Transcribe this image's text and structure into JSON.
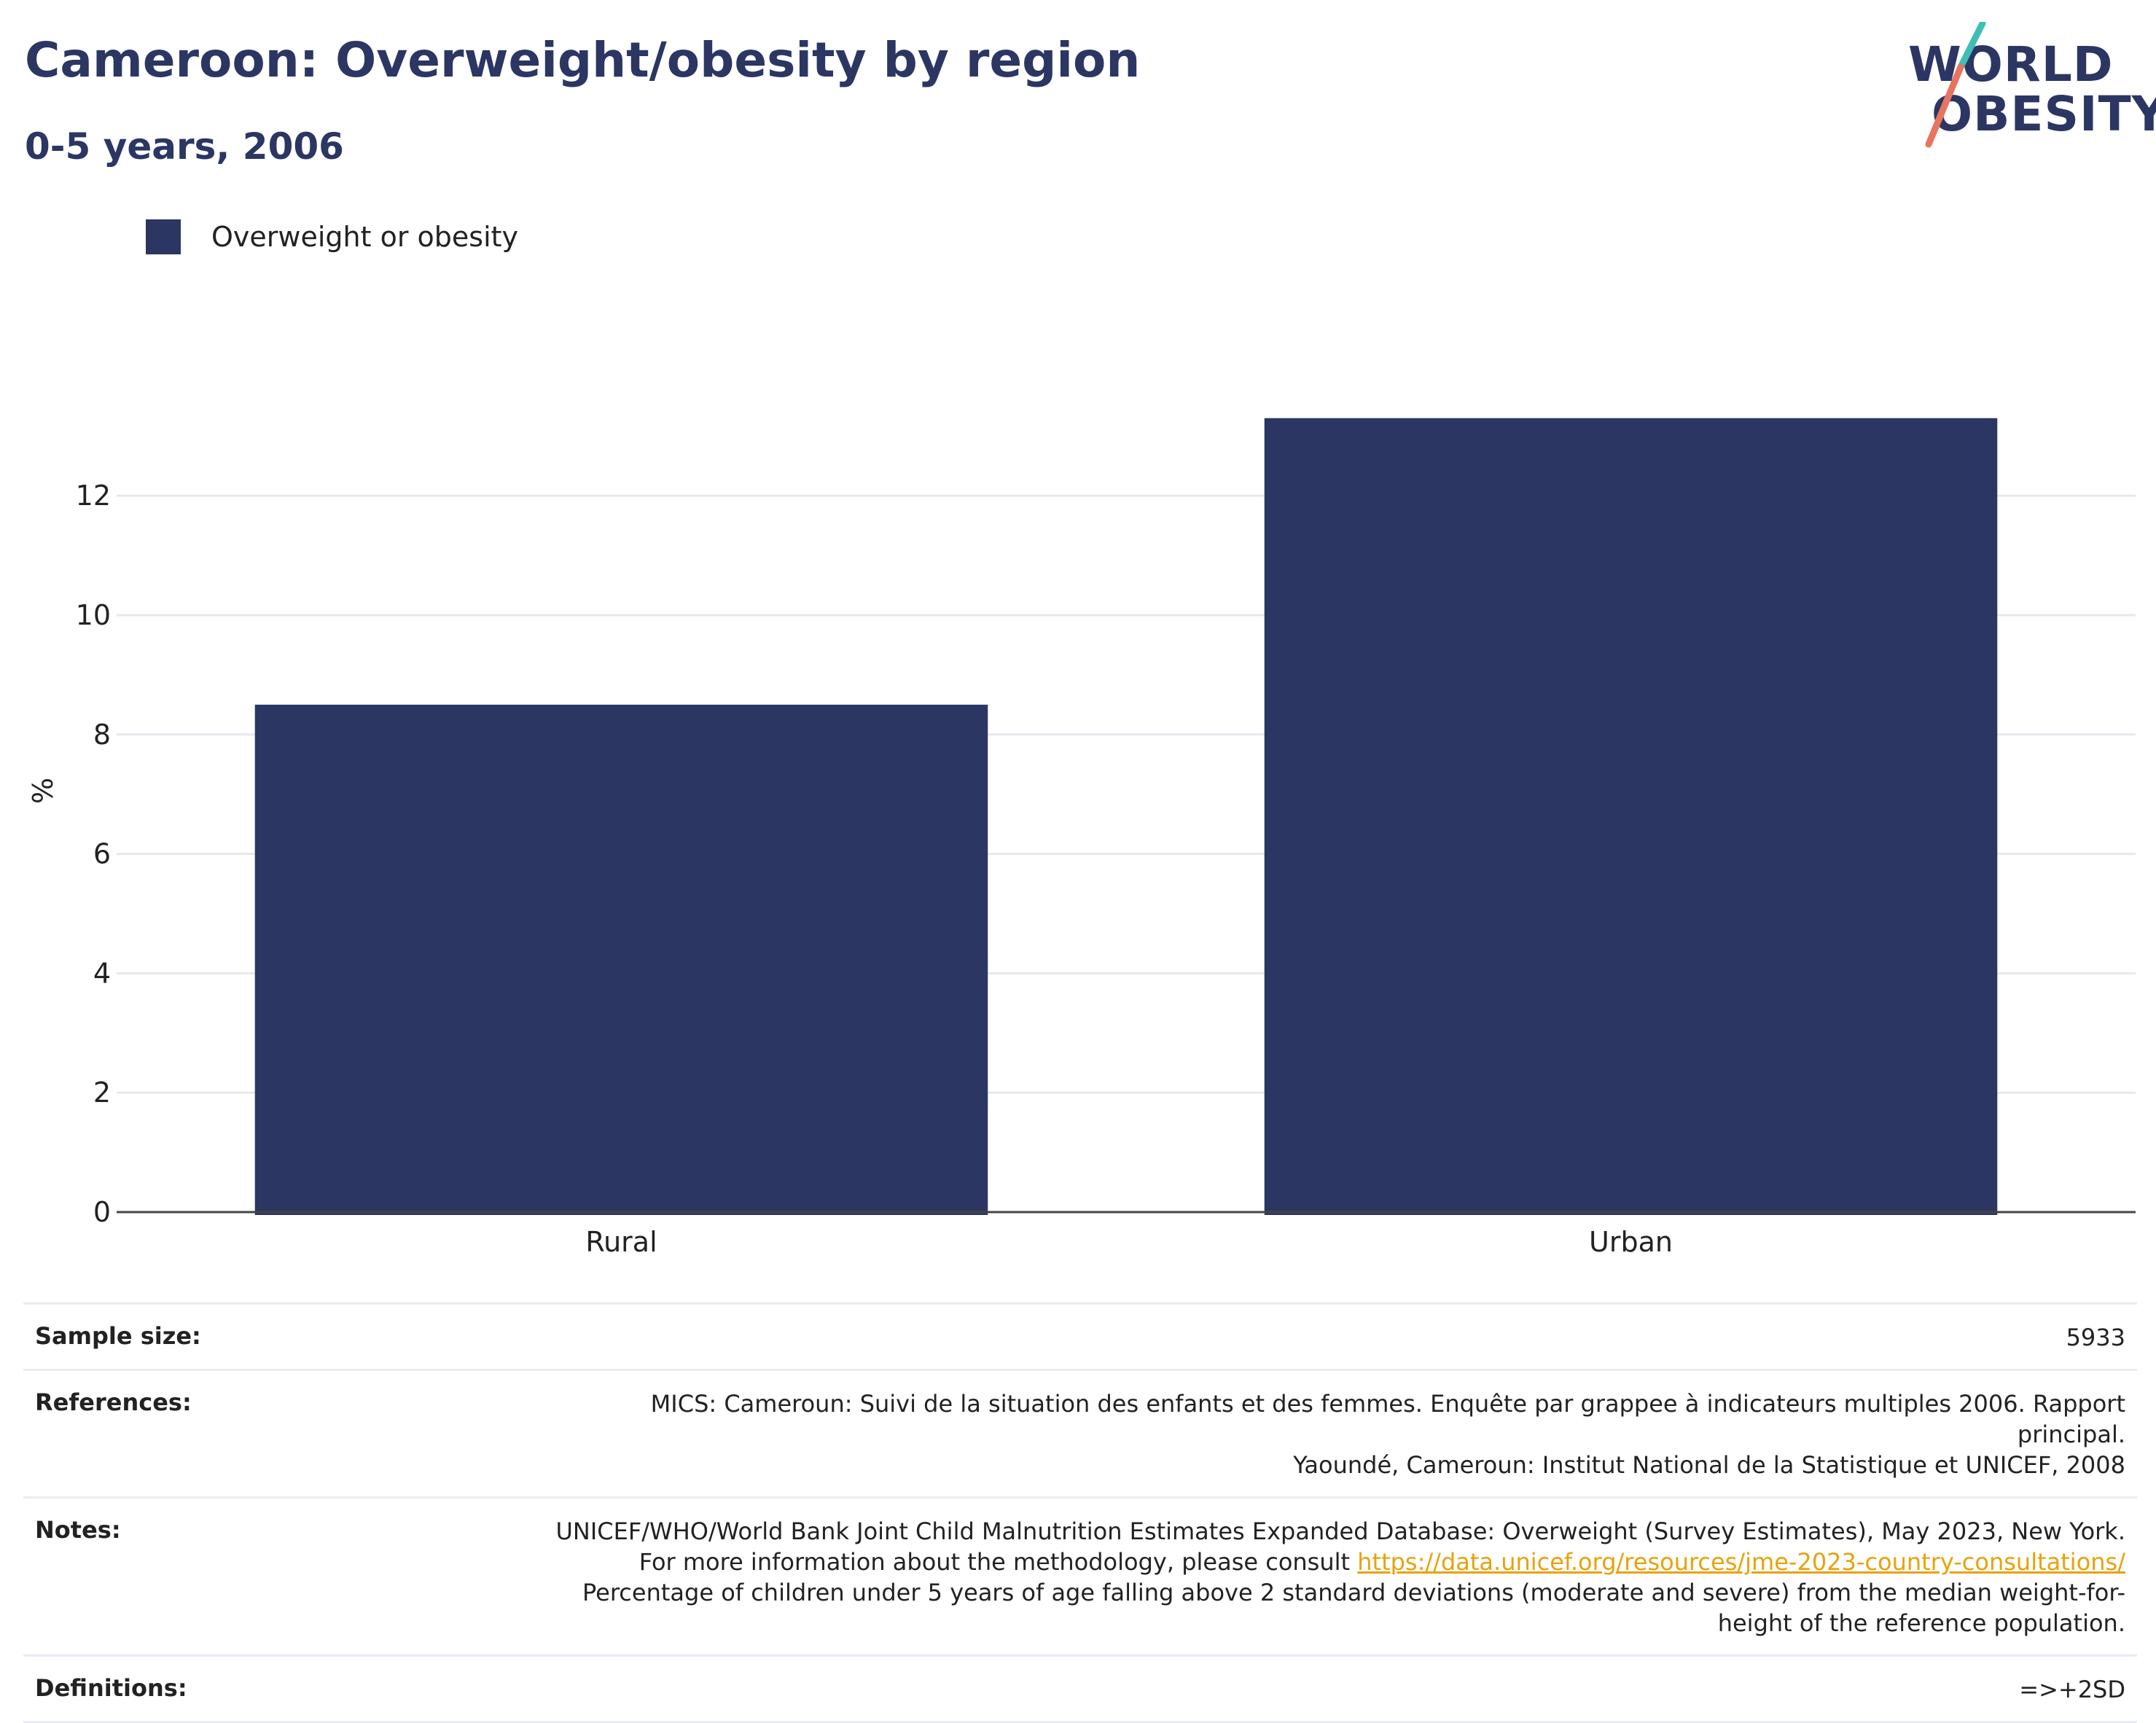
{
  "header": {
    "title": "Cameroon: Overweight/obesity by region",
    "subtitle": "0-5 years, 2006"
  },
  "logo": {
    "line1": "WORLD",
    "line2": "OBESITY"
  },
  "colors": {
    "bar": "#2b3663",
    "text": "#2b3663",
    "grid": "#e6e8ee",
    "axis": "#444444",
    "link": "#e8a20c",
    "logo_teal": "#3fbfb4",
    "logo_coral": "#e8735f"
  },
  "chart_data": {
    "type": "bar",
    "categories": [
      "Rural",
      "Urban"
    ],
    "series": [
      {
        "name": "Overweight or obesity",
        "values": [
          8.5,
          13.3
        ]
      }
    ],
    "ylabel": "%",
    "xlabel": "",
    "ylim": [
      0,
      14.2
    ],
    "yticks": [
      0,
      2,
      4,
      6,
      8,
      10,
      12
    ],
    "grid": true,
    "legend": "top-left"
  },
  "info": {
    "sample_size_label": "Sample size:",
    "sample_size_value": "5933",
    "references_label": "References:",
    "references_line1": "MICS: Cameroun: Suivi de la situation des enfants et des femmes. Enquête par grappee à indicateurs multiples 2006. Rapport principal.",
    "references_line2": "Yaoundé, Cameroun: Institut National de la Statistique et UNICEF, 2008",
    "notes_label": "Notes:",
    "notes_text1": "UNICEF/WHO/World Bank Joint Child Malnutrition Estimates Expanded Database: Overweight (Survey Estimates), May 2023, New York. For more information about the methodology, please consult",
    "notes_link": "https://data.unicef.org/resources/jme-2023-country-consultations/",
    "notes_text2": "Percentage of children under 5 years of age falling above 2 standard deviations (moderate and severe) from the median weight-for-height of the reference population.",
    "definitions_label": "Definitions:",
    "definitions_value": "=>+2SD"
  }
}
